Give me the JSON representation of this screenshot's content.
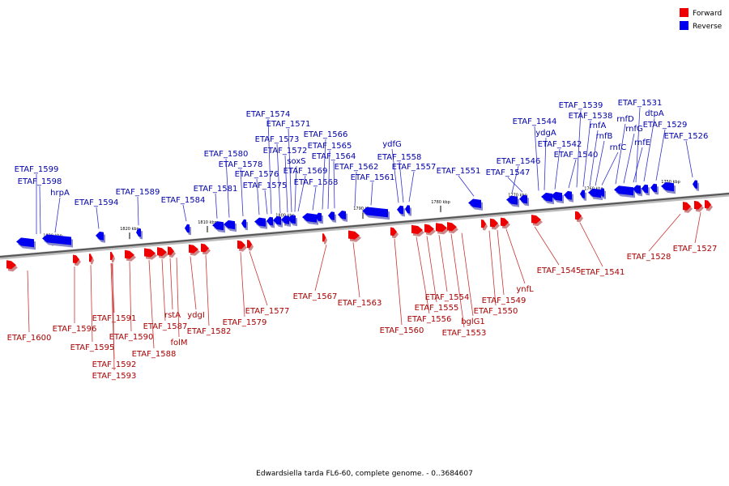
{
  "legend": [
    {
      "label": "Forward",
      "color": "#ee0000"
    },
    {
      "label": "Reverse",
      "color": "#0000ee"
    }
  ],
  "caption": "Edwardsiella tarda FL6-60, complete genome. - 0..3684607",
  "ticks": [
    "1830 kbp",
    "1820 kbp",
    "1810 kbp",
    "1800 kbp",
    "1790 kbp",
    "1780 kbp",
    "1770 kbp",
    "1760 kbp",
    "1750 kbp"
  ],
  "reverse_labels": [
    "ETAF_1599",
    "ETAF_1598",
    "hrpA",
    "ETAF_1594",
    "ETAF_1589",
    "ETAF_1584",
    "ETAF_1580",
    "ETAF_1581",
    "ETAF_1578",
    "ETAF_1576",
    "ETAF_1575",
    "ETAF_1574",
    "ETAF_1571",
    "ETAF_1573",
    "ETAF_1572",
    "soxS",
    "ETAF_1569",
    "ETAF_1568",
    "ETAF_1566",
    "ETAF_1565",
    "ETAF_1564",
    "ETAF_1562",
    "ETAF_1561",
    "ydfG",
    "ETAF_1558",
    "ETAF_1557",
    "ETAF_1551",
    "ETAF_1546",
    "ETAF_1547",
    "ETAF_1544",
    "ydgA",
    "ETAF_1542",
    "ETAF_1540",
    "ETAF_1539",
    "ETAF_1538",
    "rnfA",
    "rnfB",
    "rnfC",
    "ETAF_1531",
    "rnfD",
    "rnfG",
    "rnfE",
    "dtpA",
    "ETAF_1529",
    "ETAF_1526"
  ],
  "forward_labels": [
    "ETAF_1600",
    "ETAF_1596",
    "ETAF_1595",
    "ETAF_1591",
    "ETAF_1592",
    "ETAF_1593",
    "ETAF_1590",
    "ETAF_1588",
    "ETAF_1587",
    "rstA",
    "folM",
    "ydgI",
    "ETAF_1582",
    "ETAF_1579",
    "ETAF_1577",
    "ETAF_1567",
    "ETAF_1563",
    "ETAF_1560",
    "ETAF_1556",
    "ETAF_1555",
    "ETAF_1554",
    "bglG1",
    "ETAF_1553",
    "ETAF_1550",
    "ETAF_1549",
    "ynfL",
    "ETAF_1545",
    "ETAF_1541",
    "ETAF_1528",
    "ETAF_1527"
  ]
}
